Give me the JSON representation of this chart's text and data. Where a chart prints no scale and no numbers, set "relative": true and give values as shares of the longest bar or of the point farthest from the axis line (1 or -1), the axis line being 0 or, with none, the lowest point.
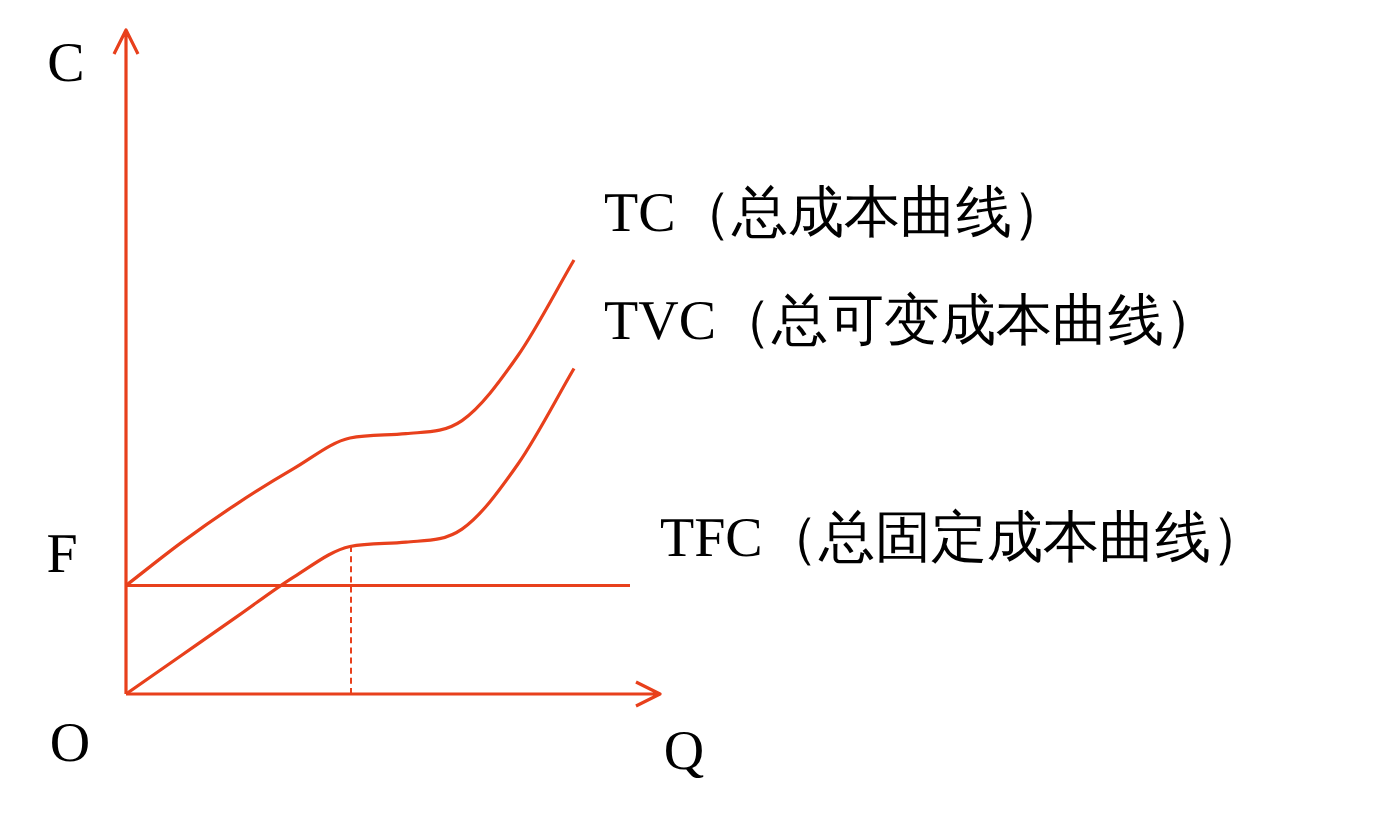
{
  "chart_data": {
    "type": "line",
    "relative": true,
    "xlabel": "Q",
    "ylabel": "C",
    "legend": false,
    "grid": false,
    "marker": "none",
    "categories": [
      null,
      null,
      null,
      null,
      null,
      null,
      null,
      null,
      null,
      null
    ],
    "series": [
      {
        "name": "TC（总成本曲线）",
        "color": "#e8401c",
        "values": [
          0.25,
          0.35,
          0.44,
          0.52,
          0.59,
          0.6,
          0.63,
          0.78,
          1,
          null
        ]
      },
      {
        "name": "TVC（总可变成本曲线）",
        "color": "#e8401c",
        "values": [
          0,
          0.09,
          0.18,
          0.27,
          0.34,
          0.35,
          0.38,
          0.53,
          0.75,
          null
        ]
      },
      {
        "name": "TFC（总固定成本曲线）",
        "color": "#e8401c",
        "values": [
          0.25,
          0.25,
          0.25,
          0.25,
          0.25,
          0.25,
          0.25,
          0.25,
          0.25,
          0.25
        ]
      }
    ],
    "annotations": [
      "O",
      "F"
    ]
  }
}
